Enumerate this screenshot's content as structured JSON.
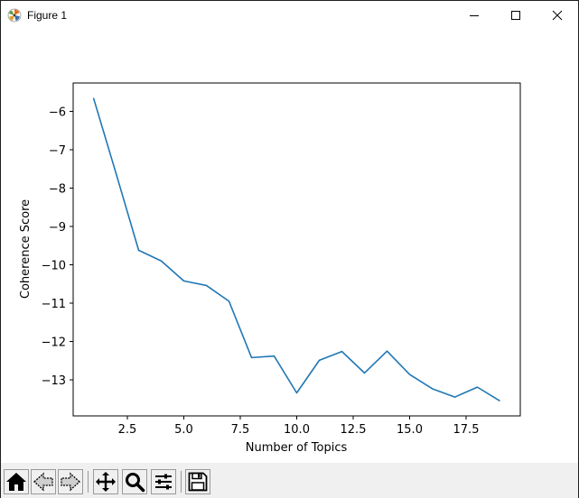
{
  "window": {
    "title": "Figure 1"
  },
  "icons": {
    "app": "matplotlib-figure-icon",
    "minimize": "minimize-icon",
    "maximize": "maximize-icon",
    "close": "close-icon",
    "home": "home-icon",
    "back": "back-arrow-icon",
    "forward": "forward-arrow-icon",
    "pan": "move-arrows-icon",
    "zoom": "magnifier-icon",
    "configure": "sliders-icon",
    "save": "floppy-disk-icon"
  },
  "colors": {
    "line": "#1f77b4",
    "toolbar_bg": "#f0f0f0"
  },
  "chart_data": {
    "type": "line",
    "title": "",
    "xlabel": "Number of Topics",
    "ylabel": "Coherence Score",
    "x": [
      1,
      2,
      3,
      4,
      5,
      6,
      7,
      8,
      9,
      10,
      11,
      12,
      13,
      14,
      15,
      16,
      17,
      18,
      19
    ],
    "series": [
      {
        "values": [
          -5.65,
          -7.62,
          -9.62,
          -9.9,
          -10.42,
          -10.54,
          -10.95,
          -12.42,
          -12.38,
          -13.34,
          -12.49,
          -12.26,
          -12.82,
          -12.25,
          -12.86,
          -13.23,
          -13.45,
          -13.19,
          -13.55
        ]
      }
    ],
    "xticks": [
      "2.5",
      "5.0",
      "7.5",
      "10.0",
      "12.5",
      "15.0",
      "17.5"
    ],
    "xtick_values": [
      2.5,
      5.0,
      7.5,
      10.0,
      12.5,
      15.0,
      17.5
    ],
    "yticks": [
      "−6",
      "−7",
      "−8",
      "−9",
      "−10",
      "−11",
      "−12",
      "−13"
    ],
    "ytick_values": [
      -6,
      -7,
      -8,
      -9,
      -10,
      -11,
      -12,
      -13
    ],
    "xlim": [
      0.1,
      19.9
    ],
    "ylim": [
      -13.94,
      -5.26
    ],
    "grid": false,
    "legend": "none"
  }
}
